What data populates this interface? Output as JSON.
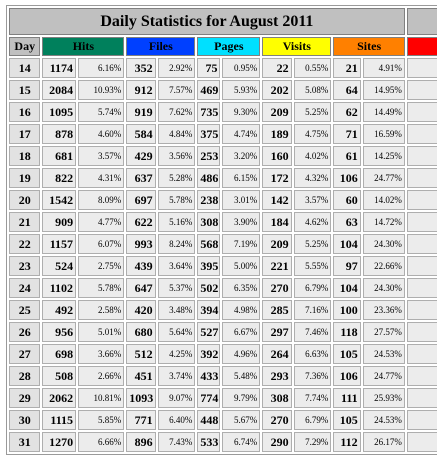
{
  "title": "Daily Statistics for August 2011",
  "headers": {
    "day": "Day",
    "hits": "Hits",
    "files": "Files",
    "pages": "Pages",
    "visits": "Visits",
    "sites": "Sites"
  },
  "header_colors": {
    "day": "#c0c0c0",
    "hits": "#00805c",
    "files": "#0040ff",
    "pages": "#00e0ff",
    "visits": "#ffff00",
    "sites": "#ff8000",
    "kbytes": "#ff0000"
  },
  "rows": [
    {
      "day": "14",
      "hits": "1174",
      "hits_pct": "6.16%",
      "files": "352",
      "files_pct": "2.92%",
      "pages": "75",
      "pages_pct": "0.95%",
      "visits": "22",
      "visits_pct": "0.55%",
      "sites": "21",
      "sites_pct": "4.91%"
    },
    {
      "day": "15",
      "hits": "2084",
      "hits_pct": "10.93%",
      "files": "912",
      "files_pct": "7.57%",
      "pages": "469",
      "pages_pct": "5.93%",
      "visits": "202",
      "visits_pct": "5.08%",
      "sites": "64",
      "sites_pct": "14.95%"
    },
    {
      "day": "16",
      "hits": "1095",
      "hits_pct": "5.74%",
      "files": "919",
      "files_pct": "7.62%",
      "pages": "735",
      "pages_pct": "9.30%",
      "visits": "209",
      "visits_pct": "5.25%",
      "sites": "62",
      "sites_pct": "14.49%"
    },
    {
      "day": "17",
      "hits": "878",
      "hits_pct": "4.60%",
      "files": "584",
      "files_pct": "4.84%",
      "pages": "375",
      "pages_pct": "4.74%",
      "visits": "189",
      "visits_pct": "4.75%",
      "sites": "71",
      "sites_pct": "16.59%"
    },
    {
      "day": "18",
      "hits": "681",
      "hits_pct": "3.57%",
      "files": "429",
      "files_pct": "3.56%",
      "pages": "253",
      "pages_pct": "3.20%",
      "visits": "160",
      "visits_pct": "4.02%",
      "sites": "61",
      "sites_pct": "14.25%"
    },
    {
      "day": "19",
      "hits": "822",
      "hits_pct": "4.31%",
      "files": "637",
      "files_pct": "5.28%",
      "pages": "486",
      "pages_pct": "6.15%",
      "visits": "172",
      "visits_pct": "4.32%",
      "sites": "106",
      "sites_pct": "24.77%"
    },
    {
      "day": "20",
      "hits": "1542",
      "hits_pct": "8.09%",
      "files": "697",
      "files_pct": "5.78%",
      "pages": "238",
      "pages_pct": "3.01%",
      "visits": "142",
      "visits_pct": "3.57%",
      "sites": "60",
      "sites_pct": "14.02%"
    },
    {
      "day": "21",
      "hits": "909",
      "hits_pct": "4.77%",
      "files": "622",
      "files_pct": "5.16%",
      "pages": "308",
      "pages_pct": "3.90%",
      "visits": "184",
      "visits_pct": "4.62%",
      "sites": "63",
      "sites_pct": "14.72%"
    },
    {
      "day": "22",
      "hits": "1157",
      "hits_pct": "6.07%",
      "files": "993",
      "files_pct": "8.24%",
      "pages": "568",
      "pages_pct": "7.19%",
      "visits": "209",
      "visits_pct": "5.25%",
      "sites": "104",
      "sites_pct": "24.30%"
    },
    {
      "day": "23",
      "hits": "524",
      "hits_pct": "2.75%",
      "files": "439",
      "files_pct": "3.64%",
      "pages": "395",
      "pages_pct": "5.00%",
      "visits": "221",
      "visits_pct": "5.55%",
      "sites": "97",
      "sites_pct": "22.66%"
    },
    {
      "day": "24",
      "hits": "1102",
      "hits_pct": "5.78%",
      "files": "647",
      "files_pct": "5.37%",
      "pages": "502",
      "pages_pct": "6.35%",
      "visits": "270",
      "visits_pct": "6.79%",
      "sites": "104",
      "sites_pct": "24.30%"
    },
    {
      "day": "25",
      "hits": "492",
      "hits_pct": "2.58%",
      "files": "420",
      "files_pct": "3.48%",
      "pages": "394",
      "pages_pct": "4.98%",
      "visits": "285",
      "visits_pct": "7.16%",
      "sites": "100",
      "sites_pct": "23.36%"
    },
    {
      "day": "26",
      "hits": "956",
      "hits_pct": "5.01%",
      "files": "680",
      "files_pct": "5.64%",
      "pages": "527",
      "pages_pct": "6.67%",
      "visits": "297",
      "visits_pct": "7.46%",
      "sites": "118",
      "sites_pct": "27.57%"
    },
    {
      "day": "27",
      "hits": "698",
      "hits_pct": "3.66%",
      "files": "512",
      "files_pct": "4.25%",
      "pages": "392",
      "pages_pct": "4.96%",
      "visits": "264",
      "visits_pct": "6.63%",
      "sites": "105",
      "sites_pct": "24.53%"
    },
    {
      "day": "28",
      "hits": "508",
      "hits_pct": "2.66%",
      "files": "451",
      "files_pct": "3.74%",
      "pages": "433",
      "pages_pct": "5.48%",
      "visits": "293",
      "visits_pct": "7.36%",
      "sites": "106",
      "sites_pct": "24.77%"
    },
    {
      "day": "29",
      "hits": "2062",
      "hits_pct": "10.81%",
      "files": "1093",
      "files_pct": "9.07%",
      "pages": "774",
      "pages_pct": "9.79%",
      "visits": "308",
      "visits_pct": "7.74%",
      "sites": "111",
      "sites_pct": "25.93%"
    },
    {
      "day": "30",
      "hits": "1115",
      "hits_pct": "5.85%",
      "files": "771",
      "files_pct": "6.40%",
      "pages": "448",
      "pages_pct": "5.67%",
      "visits": "270",
      "visits_pct": "6.79%",
      "sites": "105",
      "sites_pct": "24.53%"
    },
    {
      "day": "31",
      "hits": "1270",
      "hits_pct": "6.66%",
      "files": "896",
      "files_pct": "7.43%",
      "pages": "533",
      "pages_pct": "6.74%",
      "visits": "290",
      "visits_pct": "7.29%",
      "sites": "112",
      "sites_pct": "26.17%"
    }
  ]
}
